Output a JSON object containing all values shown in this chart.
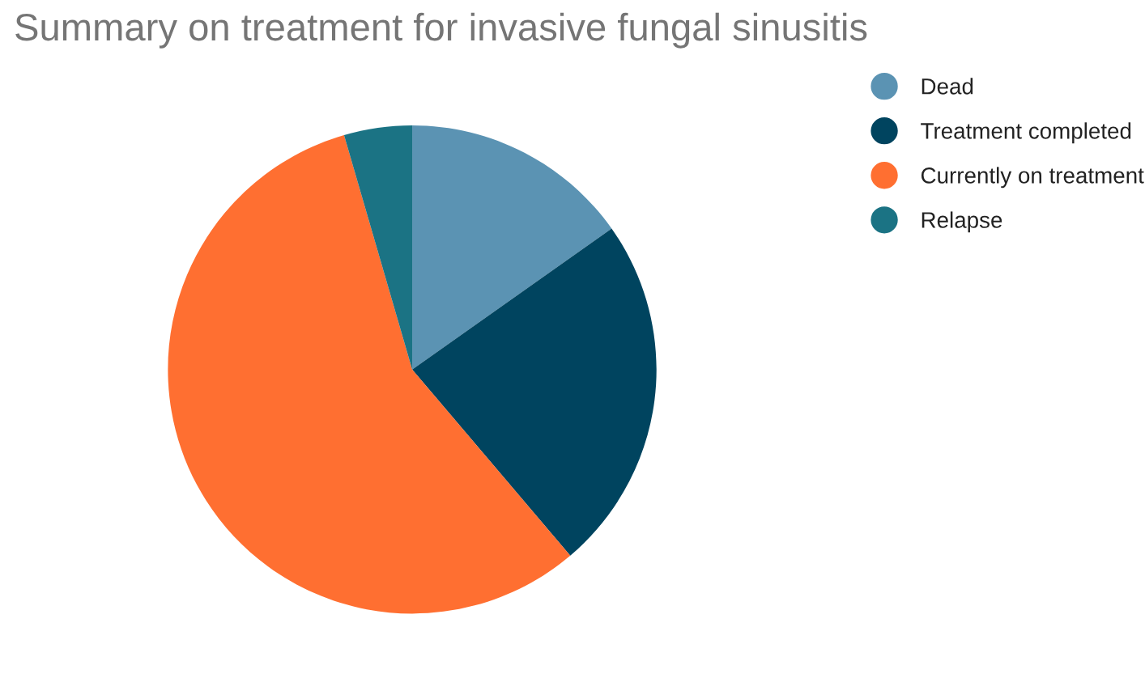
{
  "chart_data": {
    "type": "pie",
    "title": "Summary on treatment for invasive fungal sinusitis",
    "categories": [
      "Dead",
      "Treatment completed",
      "Currently on treatment",
      "Relapse"
    ],
    "values": [
      15.2,
      23.6,
      56.7,
      4.5
    ],
    "colors": [
      "#5b93b3",
      "#00445f",
      "#ff6f31",
      "#1b7384"
    ],
    "legend": "top right"
  }
}
